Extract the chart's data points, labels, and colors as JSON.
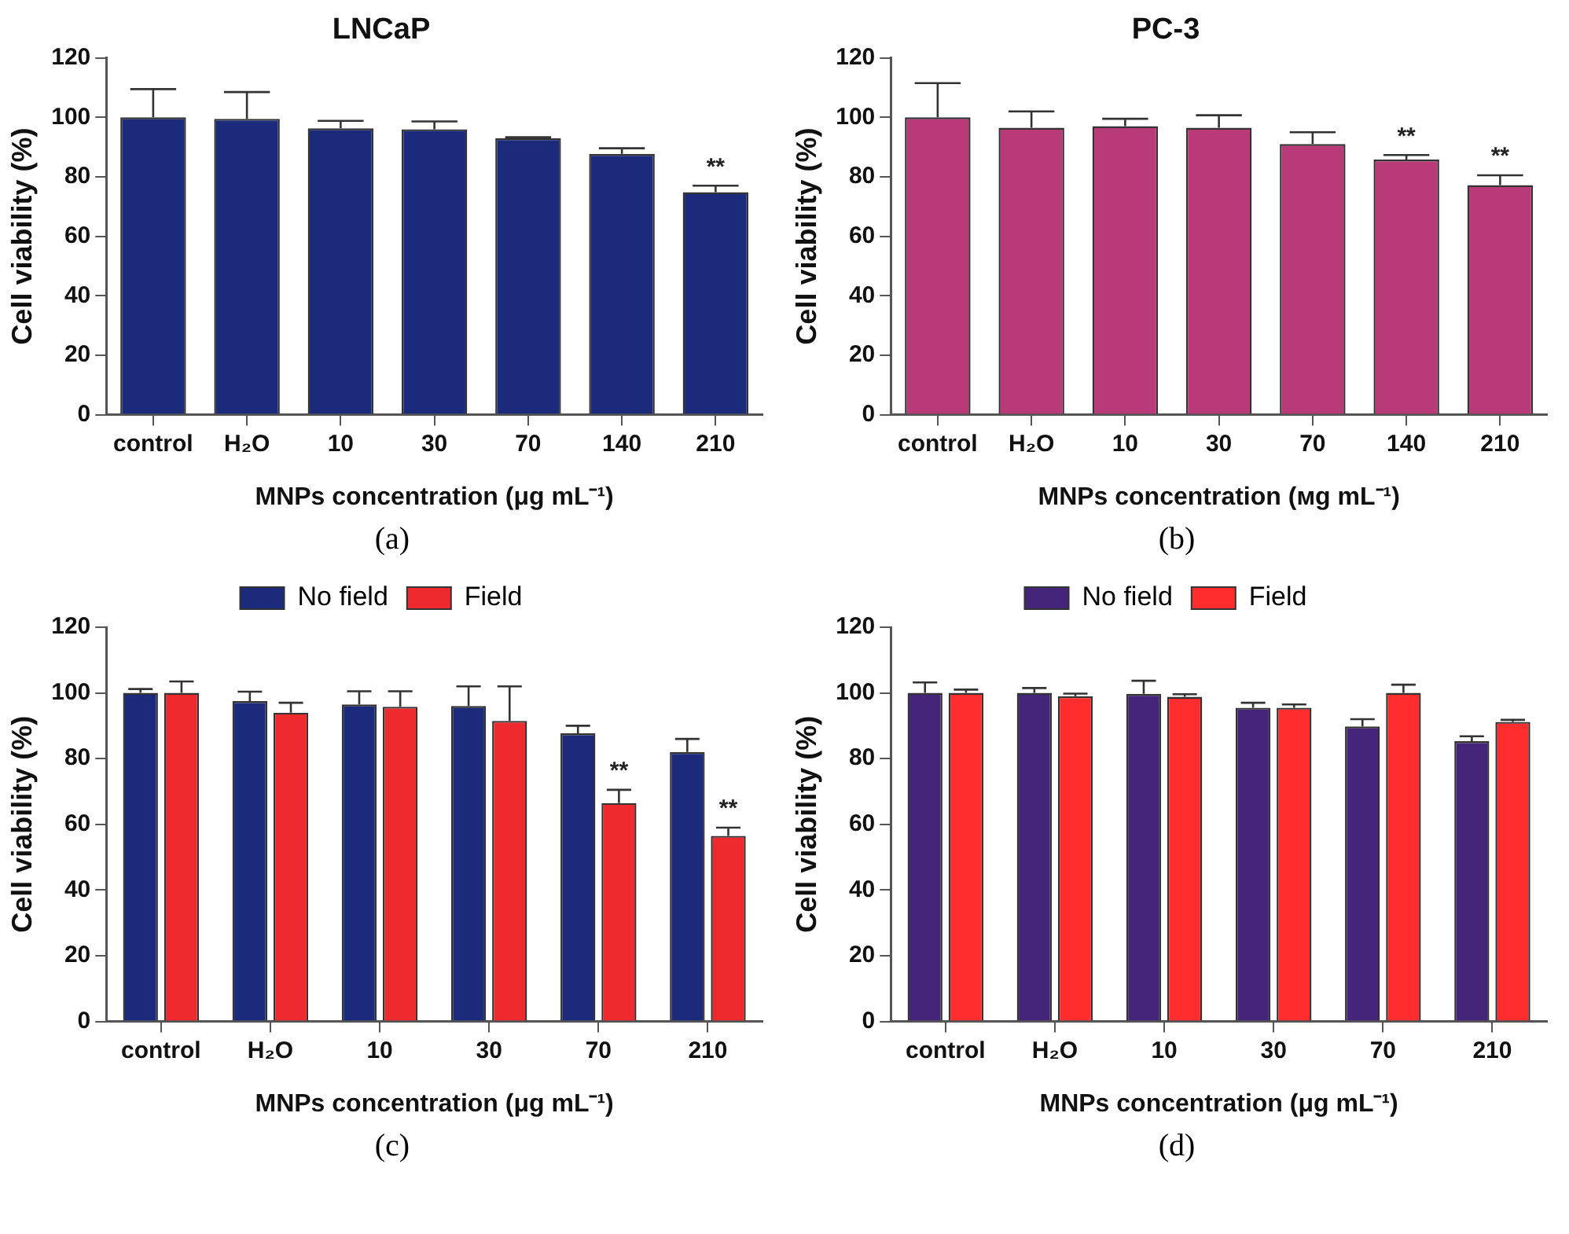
{
  "chart_data": [
    {
      "type": "bar",
      "title": "LNCaP",
      "xlabel": "MNPs concentration (μg mL⁻¹)",
      "ylabel": "Cell viability (%)",
      "categories": [
        "control",
        "H₂O",
        "10",
        "30",
        "70",
        "140",
        "210"
      ],
      "series": [
        {
          "color": "#1b2a7a",
          "values": [
            100,
            99.5,
            96.3,
            96,
            93,
            87.7,
            74.8
          ],
          "errors": [
            [
              100,
              109.5
            ],
            [
              99.5,
              108.5
            ],
            [
              96.3,
              98.8
            ],
            [
              96,
              98.6
            ],
            [
              93,
              93.3
            ],
            [
              87.7,
              89.6
            ],
            [
              74.8,
              77
            ]
          ]
        }
      ],
      "ylim": [
        0,
        120
      ],
      "yticks": [
        0,
        20,
        40,
        60,
        80,
        100,
        120
      ],
      "grid": false,
      "legend": false,
      "annotations": [
        {
          "text": "**",
          "x": "210",
          "y": 74.8
        },
        "(a)"
      ]
    },
    {
      "type": "bar",
      "title": "PC-3",
      "xlabel": "MNPs concentration (мg mL⁻¹)",
      "ylabel": "Cell viability (%)",
      "categories": [
        "control",
        "H₂O",
        "10",
        "30",
        "70",
        "140",
        "210"
      ],
      "series": [
        {
          "color": "#b83a78",
          "values": [
            100,
            96.5,
            97,
            96.5,
            91,
            85.8,
            77.2
          ],
          "errors": [
            [
              100,
              111.5
            ],
            [
              96.5,
              102
            ],
            [
              97,
              99.5
            ],
            [
              96.5,
              100.7
            ],
            [
              91,
              95
            ],
            [
              85.8,
              87.3
            ],
            [
              77.2,
              80.5
            ]
          ]
        }
      ],
      "ylim": [
        0,
        120
      ],
      "yticks": [
        0,
        20,
        40,
        60,
        80,
        100,
        120
      ],
      "grid": false,
      "legend": false,
      "annotations": [
        {
          "text": "**",
          "x": "140",
          "y": 85.8
        },
        {
          "text": "**",
          "x": "210",
          "y": 77.2
        },
        "(b)"
      ]
    },
    {
      "type": "bar",
      "xlabel": "MNPs concentration (μg mL⁻¹)",
      "ylabel": "Cell viability (%)",
      "categories": [
        "control",
        "H₂O",
        "10",
        "30",
        "70",
        "210"
      ],
      "series": [
        {
          "name": "No field",
          "color": "#1b2a7a",
          "values": [
            100,
            97.5,
            96.5,
            96,
            87.7,
            82
          ],
          "errors": [
            [
              100,
              101.2
            ],
            [
              97.5,
              100.4
            ],
            [
              96.5,
              100.5
            ],
            [
              96,
              102
            ],
            [
              87.7,
              90
            ],
            [
              82,
              86
            ]
          ]
        },
        {
          "name": "Field",
          "color": "#ee2a2e",
          "values": [
            100,
            94,
            95.8,
            91.5,
            66.5,
            56.5
          ],
          "errors": [
            [
              100,
              103.5
            ],
            [
              94,
              97
            ],
            [
              95.8,
              100.5
            ],
            [
              91.5,
              102
            ],
            [
              66.5,
              70.5
            ],
            [
              56.5,
              59
            ]
          ]
        }
      ],
      "ylim": [
        0,
        120
      ],
      "yticks": [
        0,
        20,
        40,
        60,
        80,
        100,
        120
      ],
      "grid": false,
      "legend": "top",
      "annotations": [
        {
          "text": "**",
          "x": "70",
          "y": 66.5
        },
        {
          "text": "**",
          "x": "210",
          "y": 56.5
        },
        "(c)"
      ]
    },
    {
      "type": "bar",
      "xlabel": "MNPs concentration (μg mL⁻¹)",
      "ylabel": "Cell viability (%)",
      "categories": [
        "control",
        "H₂O",
        "10",
        "30",
        "70",
        "210"
      ],
      "series": [
        {
          "name": "No field",
          "color": "#45257a",
          "values": [
            100,
            100,
            99.7,
            95.5,
            89.8,
            85.3
          ],
          "errors": [
            [
              100,
              103.2
            ],
            [
              100,
              101.5
            ],
            [
              99.7,
              103.7
            ],
            [
              95.5,
              97
            ],
            [
              89.8,
              92
            ],
            [
              85.3,
              86.8
            ]
          ]
        },
        {
          "name": "Field",
          "color": "#ff2d2d",
          "values": [
            100,
            99,
            98.8,
            95.5,
            100,
            91.2
          ],
          "errors": [
            [
              100,
              101
            ],
            [
              99,
              99.8
            ],
            [
              98.8,
              99.6
            ],
            [
              95.5,
              96.5
            ],
            [
              100,
              102.5
            ],
            [
              91.2,
              91.8
            ]
          ]
        }
      ],
      "ylim": [
        0,
        120
      ],
      "yticks": [
        0,
        20,
        40,
        60,
        80,
        100,
        120
      ],
      "grid": false,
      "legend": "top",
      "annotations": [
        "(d)"
      ]
    }
  ]
}
